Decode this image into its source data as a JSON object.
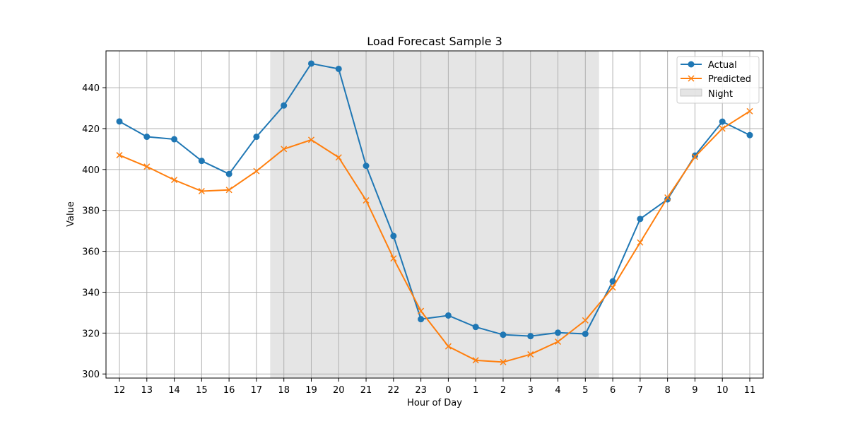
{
  "chart_data": {
    "type": "line",
    "title": "Load Forecast Sample 3",
    "xlabel": "Hour of Day",
    "ylabel": "Value",
    "categories": [
      "12",
      "13",
      "14",
      "15",
      "16",
      "17",
      "18",
      "19",
      "20",
      "21",
      "22",
      "23",
      "0",
      "1",
      "2",
      "3",
      "4",
      "5",
      "6",
      "7",
      "8",
      "9",
      "10",
      "11"
    ],
    "ylim": [
      298,
      458
    ],
    "yticks": [
      300,
      320,
      340,
      360,
      380,
      400,
      420,
      440
    ],
    "grid": true,
    "legend_position": "top-right",
    "series": [
      {
        "name": "Actual",
        "color": "#1f77b4",
        "marker": "circle",
        "values": [
          423.5,
          416,
          414.8,
          404.2,
          397.8,
          416,
          431.3,
          451.8,
          449.2,
          401.8,
          367.5,
          326.8,
          328.6,
          323,
          319.2,
          318.5,
          320.2,
          319.6,
          345.3,
          375.8,
          385.4,
          406.8,
          423.4,
          416.8
        ]
      },
      {
        "name": "Predicted",
        "color": "#ff7f0e",
        "marker": "x",
        "values": [
          407,
          401.4,
          394.9,
          389.4,
          390,
          399.2,
          410,
          414.5,
          405.9,
          384.9,
          356.5,
          330.8,
          313.5,
          306.7,
          305.8,
          309.6,
          315.8,
          326.2,
          342.3,
          364.3,
          386.3,
          406.2,
          420,
          428.5
        ]
      }
    ],
    "shaded_region": {
      "name": "Night",
      "color": "#d3d3d3",
      "from_category": "18",
      "to_category": "5"
    }
  }
}
